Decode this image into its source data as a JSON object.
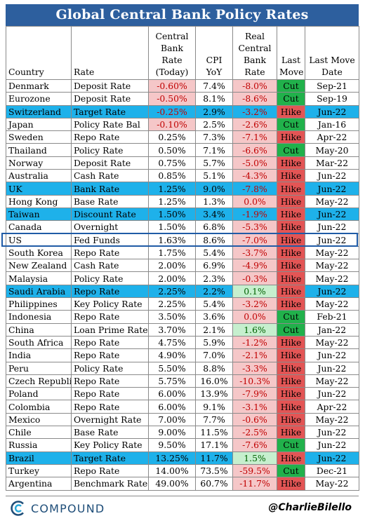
{
  "chart_data": {
    "type": "table",
    "title": "Global Central Bank Policy Rates",
    "columns": [
      "Country",
      "Rate",
      "Central Bank Rate (Today)",
      "CPI YoY",
      "Real Central Bank Rate",
      "Last Move",
      "Last Move Date"
    ],
    "rows": [
      {
        "country": "Denmark",
        "rate": "Deposit Rate",
        "cb_rate": "-0.60%",
        "cpi": "7.4%",
        "real": "-8.0%",
        "move": "Cut",
        "date": "Sep-21",
        "hl": false
      },
      {
        "country": "Eurozone",
        "rate": "Deposit Rate",
        "cb_rate": "-0.50%",
        "cpi": "8.1%",
        "real": "-8.6%",
        "move": "Cut",
        "date": "Sep-19",
        "hl": false
      },
      {
        "country": "Switzerland",
        "rate": "Target Rate",
        "cb_rate": "-0.25%",
        "cpi": "2.9%",
        "real": "-3.2%",
        "move": "Hike",
        "date": "Jun-22",
        "hl": true
      },
      {
        "country": "Japan",
        "rate": "Policy Rate Bal",
        "cb_rate": "-0.10%",
        "cpi": "2.5%",
        "real": "-2.6%",
        "move": "Cut",
        "date": "Jan-16",
        "hl": false
      },
      {
        "country": "Sweden",
        "rate": "Repo Rate",
        "cb_rate": "0.25%",
        "cpi": "7.3%",
        "real": "-7.1%",
        "move": "Hike",
        "date": "Apr-22",
        "hl": false
      },
      {
        "country": "Thailand",
        "rate": "Policy Rate",
        "cb_rate": "0.50%",
        "cpi": "7.1%",
        "real": "-6.6%",
        "move": "Cut",
        "date": "May-20",
        "hl": false
      },
      {
        "country": "Norway",
        "rate": "Deposit Rate",
        "cb_rate": "0.75%",
        "cpi": "5.7%",
        "real": "-5.0%",
        "move": "Hike",
        "date": "Mar-22",
        "hl": false
      },
      {
        "country": "Australia",
        "rate": "Cash Rate",
        "cb_rate": "0.85%",
        "cpi": "5.1%",
        "real": "-4.3%",
        "move": "Hike",
        "date": "Jun-22",
        "hl": false
      },
      {
        "country": "UK",
        "rate": "Bank Rate",
        "cb_rate": "1.25%",
        "cpi": "9.0%",
        "real": "-7.8%",
        "move": "Hike",
        "date": "Jun-22",
        "hl": true
      },
      {
        "country": "Hong Kong",
        "rate": "Base Rate",
        "cb_rate": "1.25%",
        "cpi": "1.3%",
        "real": "0.0%",
        "move": "Hike",
        "date": "May-22",
        "hl": false
      },
      {
        "country": "Taiwan",
        "rate": "Discount Rate",
        "cb_rate": "1.50%",
        "cpi": "3.4%",
        "real": "-1.9%",
        "move": "Hike",
        "date": "Jun-22",
        "hl": true
      },
      {
        "country": "Canada",
        "rate": "Overnight",
        "cb_rate": "1.50%",
        "cpi": "6.8%",
        "real": "-5.3%",
        "move": "Hike",
        "date": "Jun-22",
        "hl": false
      },
      {
        "country": "US",
        "rate": "Fed Funds",
        "cb_rate": "1.63%",
        "cpi": "8.6%",
        "real": "-7.0%",
        "move": "Hike",
        "date": "Jun-22",
        "hl": false
      },
      {
        "country": "South Korea",
        "rate": "Repo Rate",
        "cb_rate": "1.75%",
        "cpi": "5.4%",
        "real": "-3.7%",
        "move": "Hike",
        "date": "May-22",
        "hl": false
      },
      {
        "country": "New Zealand",
        "rate": "Cash Rate",
        "cb_rate": "2.00%",
        "cpi": "6.9%",
        "real": "-4.9%",
        "move": "Hike",
        "date": "May-22",
        "hl": false
      },
      {
        "country": "Malaysia",
        "rate": "Policy Rate",
        "cb_rate": "2.00%",
        "cpi": "2.3%",
        "real": "-0.3%",
        "move": "Hike",
        "date": "May-22",
        "hl": false
      },
      {
        "country": "Saudi Arabia",
        "rate": "Repo Rate",
        "cb_rate": "2.25%",
        "cpi": "2.2%",
        "real": "0.1%",
        "move": "Hike",
        "date": "Jun-22",
        "hl": true
      },
      {
        "country": "Philippines",
        "rate": "Key Policy Rate",
        "cb_rate": "2.25%",
        "cpi": "5.4%",
        "real": "-3.2%",
        "move": "Hike",
        "date": "May-22",
        "hl": false
      },
      {
        "country": "Indonesia",
        "rate": "Repo Rate",
        "cb_rate": "3.50%",
        "cpi": "3.6%",
        "real": "0.0%",
        "move": "Cut",
        "date": "Feb-21",
        "hl": false
      },
      {
        "country": "China",
        "rate": "Loan Prime Rate",
        "cb_rate": "3.70%",
        "cpi": "2.1%",
        "real": "1.6%",
        "move": "Cut",
        "date": "Jan-22",
        "hl": false
      },
      {
        "country": "South Africa",
        "rate": "Repo Rate",
        "cb_rate": "4.75%",
        "cpi": "5.9%",
        "real": "-1.2%",
        "move": "Hike",
        "date": "May-22",
        "hl": false
      },
      {
        "country": "India",
        "rate": "Repo Rate",
        "cb_rate": "4.90%",
        "cpi": "7.0%",
        "real": "-2.1%",
        "move": "Hike",
        "date": "Jun-22",
        "hl": false
      },
      {
        "country": "Peru",
        "rate": "Policy Rate",
        "cb_rate": "5.50%",
        "cpi": "8.8%",
        "real": "-3.3%",
        "move": "Hike",
        "date": "Jun-22",
        "hl": false
      },
      {
        "country": "Czech Republic",
        "rate": "Repo Rate",
        "cb_rate": "5.75%",
        "cpi": "16.0%",
        "real": "-10.3%",
        "move": "Hike",
        "date": "May-22",
        "hl": false
      },
      {
        "country": "Poland",
        "rate": "Repo Rate",
        "cb_rate": "6.00%",
        "cpi": "13.9%",
        "real": "-7.9%",
        "move": "Hike",
        "date": "Jun-22",
        "hl": false
      },
      {
        "country": "Colombia",
        "rate": "Repo Rate",
        "cb_rate": "6.00%",
        "cpi": "9.1%",
        "real": "-3.1%",
        "move": "Hike",
        "date": "Apr-22",
        "hl": false
      },
      {
        "country": "Mexico",
        "rate": "Overnight Rate",
        "cb_rate": "7.00%",
        "cpi": "7.7%",
        "real": "-0.6%",
        "move": "Hike",
        "date": "May-22",
        "hl": false
      },
      {
        "country": "Chile",
        "rate": "Base Rate",
        "cb_rate": "9.00%",
        "cpi": "11.5%",
        "real": "-2.5%",
        "move": "Hike",
        "date": "Jun-22",
        "hl": false
      },
      {
        "country": "Russia",
        "rate": "Key Policy Rate",
        "cb_rate": "9.50%",
        "cpi": "17.1%",
        "real": "-7.6%",
        "move": "Cut",
        "date": "Jun-22",
        "hl": false
      },
      {
        "country": "Brazil",
        "rate": "Target Rate",
        "cb_rate": "13.25%",
        "cpi": "11.7%",
        "real": "1.5%",
        "move": "Hike",
        "date": "Jun-22",
        "hl": true
      },
      {
        "country": "Turkey",
        "rate": "Repo Rate",
        "cb_rate": "14.00%",
        "cpi": "73.5%",
        "real": "-59.5%",
        "move": "Cut",
        "date": "Dec-21",
        "hl": false
      },
      {
        "country": "Argentina",
        "rate": "Benchmark Rate",
        "cb_rate": "49.00%",
        "cpi": "60.7%",
        "real": "-11.7%",
        "move": "Hike",
        "date": "May-22",
        "hl": false
      }
    ]
  },
  "header": {
    "country": "Country",
    "rate": "Rate",
    "cb_rate": "Central Bank Rate (Today)",
    "cpi": "CPI YoY",
    "real": "Real Central Bank Rate",
    "move": "Last Move",
    "date": "Last Move Date"
  },
  "footer": {
    "brand": "COMPOUND",
    "handle": "@CharlieBilello"
  },
  "colors": {
    "title_bg": "#2d5f9e",
    "highlight_row": "#1eb1ea",
    "hike": "#e35555",
    "cut": "#21b14b",
    "negative_fill": "#f5c7c8",
    "positive_fill": "#c6efce",
    "us_box": "#1f5ba6"
  }
}
